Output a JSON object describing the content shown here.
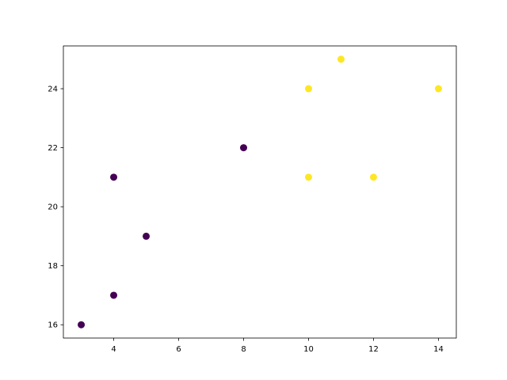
{
  "chart_data": {
    "type": "scatter",
    "title": "",
    "xlabel": "",
    "ylabel": "",
    "xlim": [
      2.45,
      14.55
    ],
    "ylim": [
      15.55,
      25.45
    ],
    "xticks": [
      4,
      6,
      8,
      10,
      12,
      14
    ],
    "yticks": [
      16,
      18,
      20,
      22,
      24
    ],
    "grid": false,
    "colormap": "viridis",
    "class_colors": {
      "0": "#440154",
      "1": "#fde725"
    },
    "points": [
      {
        "x": 4,
        "y": 21,
        "class": 0
      },
      {
        "x": 5,
        "y": 19,
        "class": 0
      },
      {
        "x": 10,
        "y": 24,
        "class": 1
      },
      {
        "x": 4,
        "y": 17,
        "class": 0
      },
      {
        "x": 3,
        "y": 16,
        "class": 0
      },
      {
        "x": 11,
        "y": 25,
        "class": 1
      },
      {
        "x": 14,
        "y": 24,
        "class": 1
      },
      {
        "x": 8,
        "y": 22,
        "class": 0
      },
      {
        "x": 10,
        "y": 21,
        "class": 1
      },
      {
        "x": 12,
        "y": 21,
        "class": 1
      }
    ]
  }
}
